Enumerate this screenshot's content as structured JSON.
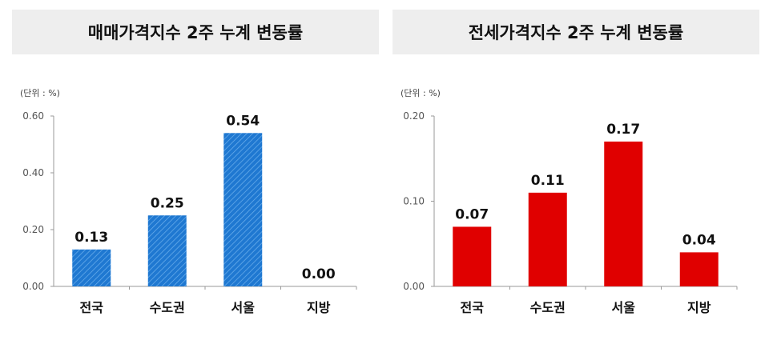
{
  "charts": [
    {
      "title": "매매가격지수 2주 누계 변동률",
      "unit": "(단위 : %)"
    },
    {
      "title": "전세가격지수 2주 누계 변동률",
      "unit": "(단위 : %)"
    }
  ],
  "chart_data": [
    {
      "type": "bar",
      "title": "매매가격지수 2주 누계 변동률",
      "unit": "(단위 : %)",
      "categories": [
        "전국",
        "수도권",
        "서울",
        "지방"
      ],
      "values": [
        0.13,
        0.25,
        0.54,
        0.0
      ],
      "value_labels": [
        "0.13",
        "0.25",
        "0.54",
        "0.00"
      ],
      "ylim": [
        0,
        0.6
      ],
      "yticks": [
        0.0,
        0.2,
        0.4,
        0.6
      ],
      "ytick_labels": [
        "0.00",
        "0.20",
        "0.40",
        "0.60"
      ],
      "color": "#1f78d1",
      "pattern": "diagonal-hatch",
      "grid": false
    },
    {
      "type": "bar",
      "title": "전세가격지수 2주 누계 변동률",
      "unit": "(단위 : %)",
      "categories": [
        "전국",
        "수도권",
        "서울",
        "지방"
      ],
      "values": [
        0.07,
        0.11,
        0.17,
        0.04
      ],
      "value_labels": [
        "0.07",
        "0.11",
        "0.17",
        "0.04"
      ],
      "ylim": [
        0,
        0.2
      ],
      "yticks": [
        0.0,
        0.1,
        0.2
      ],
      "ytick_labels": [
        "0.00",
        "0.10",
        "0.20"
      ],
      "color": "#e00000",
      "pattern": "solid",
      "grid": false
    }
  ]
}
